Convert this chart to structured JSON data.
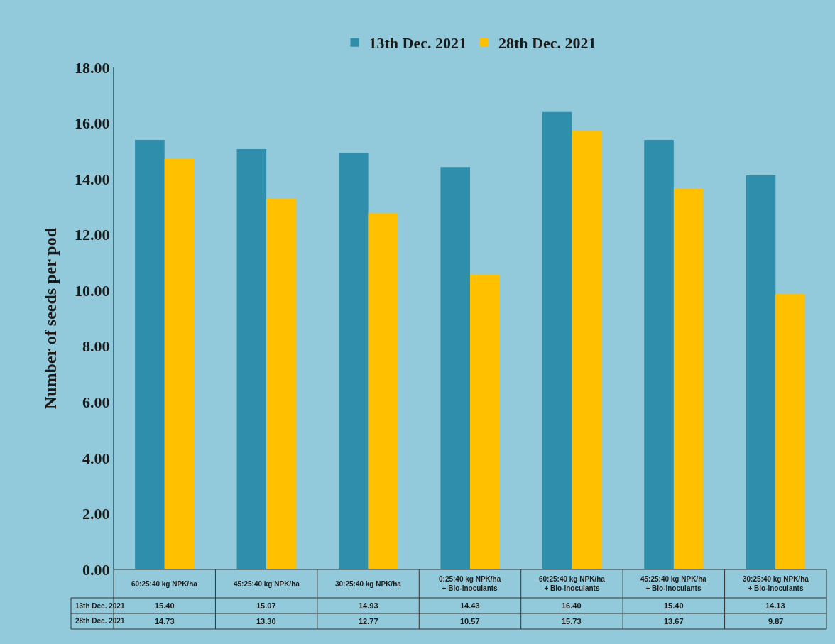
{
  "chart_data": {
    "type": "bar",
    "ylabel": "Number of seeds per pod",
    "categories": [
      "60:25:40 kg NPK/ha",
      "45:25:40 kg NPK/ha",
      "30:25:40 kg NPK/ha",
      "0:25:40 kg NPK/ha\n+ Bio-inoculants",
      "60:25:40 kg NPK/ha\n+ Bio-inoculants",
      "45:25:40 kg NPK/ha\n+ Bio-inoculants",
      "30:25:40 kg NPK/ha\n+ Bio-inoculants"
    ],
    "series": [
      {
        "name": "13th Dec. 2021",
        "color": "#2f8eab",
        "values": [
          15.4,
          15.07,
          14.93,
          14.43,
          16.4,
          15.4,
          14.13
        ],
        "value_labels": [
          "15.40",
          "15.07",
          "14.93",
          "14.43",
          "16.40",
          "15.40",
          "14.13"
        ]
      },
      {
        "name": "28th Dec. 2021",
        "color": "#ffc000",
        "values": [
          14.73,
          13.3,
          12.77,
          10.57,
          15.73,
          13.67,
          9.87
        ],
        "value_labels": [
          "14.73",
          "13.30",
          "12.77",
          "10.57",
          "15.73",
          "13.67",
          "9.87"
        ]
      }
    ],
    "ylim": [
      0,
      18
    ],
    "yticks": [
      {
        "value": 0,
        "label": "0.00"
      },
      {
        "value": 2,
        "label": "2.00"
      },
      {
        "value": 4,
        "label": "4.00"
      },
      {
        "value": 6,
        "label": "6.00"
      },
      {
        "value": 8,
        "label": "8.00"
      },
      {
        "value": 10,
        "label": "10.00"
      },
      {
        "value": 12,
        "label": "12.00"
      },
      {
        "value": 14,
        "label": "14.00"
      },
      {
        "value": 16,
        "label": "16.00"
      },
      {
        "value": 18,
        "label": "18.00"
      }
    ],
    "grid": false,
    "legend": "top",
    "tick_labels": "y"
  }
}
